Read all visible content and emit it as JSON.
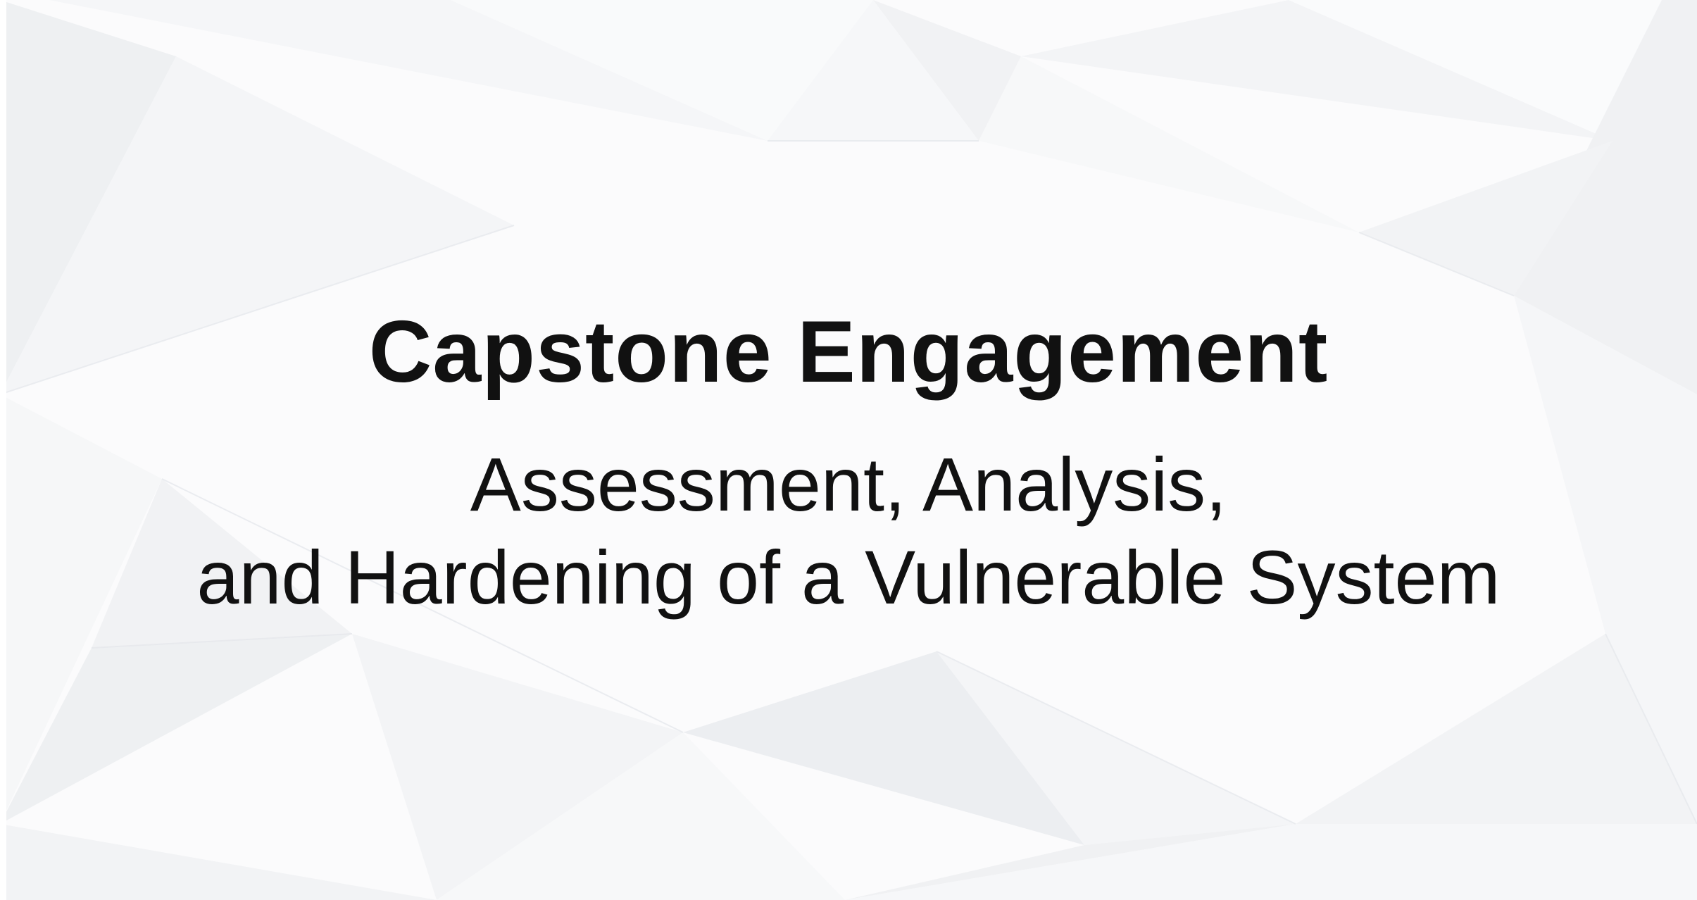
{
  "slide": {
    "title": "Capstone Engagement",
    "subtitle_line1": "Assessment, Analysis,",
    "subtitle_line2": "and Hardening of a Vulnerable System"
  },
  "colors": {
    "text": "#111111",
    "background": "#fbfbfc",
    "pattern_light": "#f3f4f6",
    "pattern_mid": "#eceef1"
  }
}
